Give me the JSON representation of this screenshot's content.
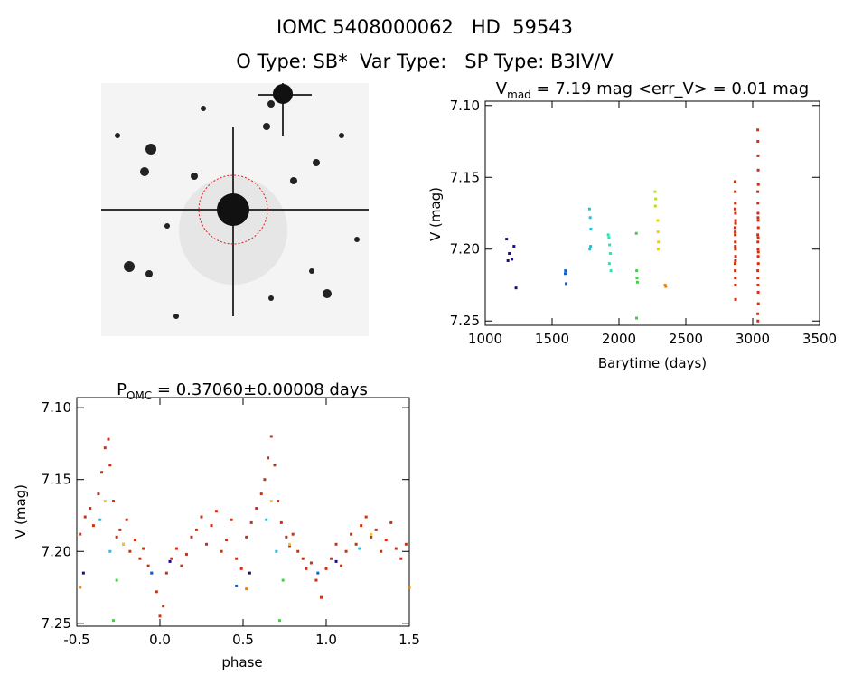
{
  "header": {
    "title": "IOMC 5408000062   HD  59543",
    "subtitle": "O Type: SB*  Var Type:   SP Type: B3IV/V"
  },
  "chart_data": [
    {
      "type": "scatter",
      "title": "V",
      "title_sub": "mad",
      "title_rest": " = 7.19 mag <err_V> = 0.01 mag",
      "xlabel": "Barytime (days)",
      "ylabel": "V (mag)",
      "xlim": [
        1000,
        3500
      ],
      "ylim": [
        7.253,
        7.097
      ],
      "xticks": [
        1000,
        1500,
        2000,
        2500,
        3000,
        3500
      ],
      "yticks": [
        {
          "value": 7.1,
          "label": "7.10"
        },
        7.15,
        {
          "value": 7.2,
          "label": "7.20"
        },
        7.25
      ],
      "series": [
        {
          "color": "#1a0a8c",
          "x": [
            1160,
            1180,
            1200,
            1215,
            1230,
            1170
          ],
          "values": [
            7.193,
            7.203,
            7.207,
            7.198,
            7.227,
            7.208
          ]
        },
        {
          "color": "#1060d0",
          "x": [
            1600,
            1605,
            1598
          ],
          "values": [
            7.215,
            7.224,
            7.217
          ]
        },
        {
          "color": "#20c0e0",
          "x": [
            1780,
            1785,
            1790,
            1782,
            1788
          ],
          "values": [
            7.172,
            7.178,
            7.186,
            7.2,
            7.198
          ]
        },
        {
          "color": "#30e0b0",
          "x": [
            1920,
            1925,
            1930,
            1935,
            1928,
            1940
          ],
          "values": [
            7.19,
            7.192,
            7.197,
            7.203,
            7.21,
            7.215
          ]
        },
        {
          "color": "#40d040",
          "x": [
            2130,
            2133,
            2135,
            2138,
            2132
          ],
          "values": [
            7.189,
            7.215,
            7.22,
            7.223,
            7.248
          ]
        },
        {
          "color": "#b0e020",
          "x": [
            2270,
            2275,
            2272
          ],
          "values": [
            7.16,
            7.165,
            7.17
          ]
        },
        {
          "color": "#f0d000",
          "x": [
            2290,
            2292,
            2295,
            2293
          ],
          "values": [
            7.18,
            7.188,
            7.195,
            7.2
          ]
        },
        {
          "color": "#f08000",
          "x": [
            2345,
            2350
          ],
          "values": [
            7.225,
            7.226
          ]
        },
        {
          "color": "#d03010",
          "x": [
            2868,
            2869,
            2870,
            2871,
            2872,
            2868,
            2869,
            2870,
            2871,
            2872,
            2868,
            2869,
            2870,
            2871,
            2872,
            2868,
            2869,
            2870,
            2871,
            2872,
            3038,
            3039,
            3040,
            3041,
            3042,
            3038,
            3039,
            3040,
            3041,
            3042,
            3038,
            3039,
            3040,
            3041,
            3042,
            3038,
            3039,
            3040,
            3041,
            3042,
            3038,
            3039,
            3040,
            3041,
            3042
          ],
          "values": [
            7.153,
            7.16,
            7.168,
            7.175,
            7.18,
            7.185,
            7.19,
            7.195,
            7.2,
            7.205,
            7.21,
            7.215,
            7.22,
            7.225,
            7.235,
            7.172,
            7.188,
            7.198,
            7.208,
            7.182,
            7.117,
            7.125,
            7.135,
            7.145,
            7.155,
            7.16,
            7.168,
            7.175,
            7.18,
            7.185,
            7.19,
            7.195,
            7.2,
            7.205,
            7.21,
            7.215,
            7.22,
            7.225,
            7.23,
            7.238,
            7.245,
            7.25,
            7.178,
            7.192,
            7.202
          ]
        }
      ]
    },
    {
      "type": "scatter",
      "title": "P",
      "title_sub": "OMC",
      "title_rest": " = 0.37060±0.00008 days",
      "xlabel": "phase",
      "ylabel": "V (mag)",
      "xlim": [
        -0.5,
        1.5
      ],
      "ylim": [
        7.252,
        7.093
      ],
      "xticks": [
        -0.5,
        {
          "value": 0,
          "label": "0.0"
        },
        0.5,
        {
          "value": 1,
          "label": "1.0"
        },
        1.5
      ],
      "yticks": [
        {
          "value": 7.1,
          "label": "7.10"
        },
        7.15,
        {
          "value": 7.2,
          "label": "7.20"
        },
        7.25
      ],
      "series": [
        {
          "color": "#d03010",
          "x": [
            -0.48,
            -0.45,
            -0.42,
            -0.4,
            -0.37,
            -0.35,
            -0.33,
            -0.31,
            -0.3,
            -0.28,
            -0.26,
            -0.24,
            -0.22,
            -0.2,
            -0.18,
            -0.15,
            -0.12,
            -0.1,
            -0.07,
            -0.05,
            -0.02,
            0.0,
            0.02,
            0.04,
            0.07,
            0.1,
            0.13,
            0.16,
            0.19,
            0.22,
            0.25,
            0.28,
            0.31,
            0.34,
            0.37,
            0.4,
            0.43,
            0.46,
            0.49,
            0.52,
            0.55,
            0.58,
            0.61,
            0.63,
            0.65,
            0.67,
            0.69,
            0.71,
            0.73,
            0.76,
            0.78,
            0.8,
            0.83,
            0.86,
            0.88,
            0.91,
            0.94,
            0.97,
            1.0,
            1.03,
            1.06,
            1.09,
            1.12,
            1.15,
            1.18,
            1.21,
            1.24,
            1.27,
            1.3,
            1.33,
            1.36,
            1.39,
            1.42,
            1.45,
            1.48
          ],
          "values": [
            7.188,
            7.176,
            7.17,
            7.182,
            7.16,
            7.145,
            7.128,
            7.122,
            7.14,
            7.165,
            7.19,
            7.185,
            7.195,
            7.178,
            7.2,
            7.192,
            7.205,
            7.198,
            7.21,
            7.215,
            7.228,
            7.245,
            7.238,
            7.215,
            7.205,
            7.198,
            7.21,
            7.202,
            7.19,
            7.185,
            7.176,
            7.195,
            7.182,
            7.172,
            7.2,
            7.192,
            7.178,
            7.205,
            7.212,
            7.19,
            7.18,
            7.17,
            7.16,
            7.15,
            7.135,
            7.12,
            7.14,
            7.165,
            7.18,
            7.19,
            7.196,
            7.188,
            7.2,
            7.205,
            7.212,
            7.208,
            7.22,
            7.232,
            7.212,
            7.205,
            7.195,
            7.21,
            7.2,
            7.188,
            7.195,
            7.182,
            7.176,
            7.19,
            7.185,
            7.2,
            7.192,
            7.18,
            7.198,
            7.205,
            7.195
          ]
        },
        {
          "color": "#1a0a8c",
          "x": [
            -0.46,
            0.06,
            0.54,
            1.06
          ],
          "values": [
            7.215,
            7.207,
            7.215,
            7.207
          ]
        },
        {
          "color": "#1060d0",
          "x": [
            -0.05,
            0.46,
            0.95
          ],
          "values": [
            7.215,
            7.224,
            7.215
          ]
        },
        {
          "color": "#20c0e0",
          "x": [
            -0.36,
            -0.3,
            0.64,
            0.7,
            1.2
          ],
          "values": [
            7.178,
            7.2,
            7.178,
            7.2,
            7.198
          ]
        },
        {
          "color": "#40d040",
          "x": [
            -0.26,
            -0.28,
            0.74,
            0.72
          ],
          "values": [
            7.22,
            7.248,
            7.22,
            7.248
          ]
        },
        {
          "color": "#f0d000",
          "x": [
            -0.33,
            -0.22,
            0.67,
            0.78,
            1.27
          ],
          "values": [
            7.165,
            7.195,
            7.165,
            7.195,
            7.188
          ]
        },
        {
          "color": "#f08000",
          "x": [
            -0.48,
            0.52,
            1.5
          ],
          "values": [
            7.225,
            7.226,
            7.225
          ]
        }
      ]
    }
  ]
}
